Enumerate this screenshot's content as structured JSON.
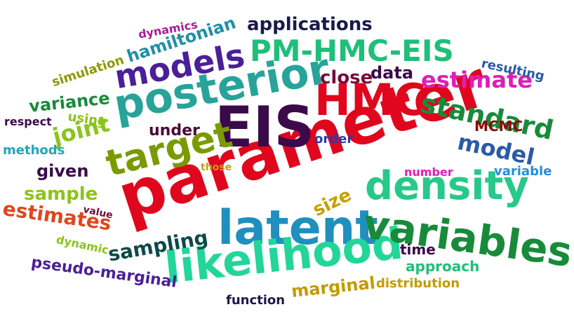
{
  "words": {
    "parameter": {
      "text": "parameter",
      "color": "#e0061d"
    },
    "eis": {
      "text": "EIS",
      "color": "#3a0a4a"
    },
    "hmc": {
      "text": "HMC",
      "color": "#e0061d"
    },
    "posterior": {
      "text": "posterior",
      "color": "#27a39a"
    },
    "latent": {
      "text": "latent",
      "color": "#1f8fbf"
    },
    "density": {
      "text": "density",
      "color": "#27c98a"
    },
    "likelihood": {
      "text": "likelihood",
      "color": "#22d69a"
    },
    "variables": {
      "text": "variables",
      "color": "#178b3a"
    },
    "target": {
      "text": "target",
      "color": "#7a9a00"
    },
    "models": {
      "text": "models",
      "color": "#4b1f9a"
    },
    "pm_hmc_eis": {
      "text": "PM-HMC-EIS",
      "color": "#1fbf7a"
    },
    "standard": {
      "text": "standard",
      "color": "#178b3a"
    },
    "estimate": {
      "text": "estimate",
      "color": "#e01cb9"
    },
    "model": {
      "text": "model",
      "color": "#2a5aa8"
    },
    "sampling": {
      "text": "sampling",
      "color": "#0d4a4a"
    },
    "applications": {
      "text": "applications",
      "color": "#1a1a4a"
    },
    "hamiltonian": {
      "text": "hamiltonian",
      "color": "#1f8fa8"
    },
    "close": {
      "text": "close",
      "color": "#7a0a3a"
    },
    "data": {
      "text": "data",
      "color": "#3a0a4a"
    },
    "resulting": {
      "text": "resulting",
      "color": "#2a5aa8"
    },
    "mcmc": {
      "text": "MCMC",
      "color": "#8a0a0a"
    },
    "order": {
      "text": "order",
      "color": "#2a3aa8"
    },
    "under": {
      "text": "under",
      "color": "#4a0a3a"
    },
    "joint": {
      "text": "joint",
      "color": "#8ac41c"
    },
    "variance": {
      "text": "variance",
      "color": "#178b3a"
    },
    "using": {
      "text": "using",
      "color": "#8ac41c"
    },
    "respect": {
      "text": "respect",
      "color": "#3a0a4a"
    },
    "methods": {
      "text": "methods",
      "color": "#1fa8b8"
    },
    "given": {
      "text": "given",
      "color": "#3a0a4a"
    },
    "sample": {
      "text": "sample",
      "color": "#8ac41c"
    },
    "estimates": {
      "text": "estimates",
      "color": "#e0461d"
    },
    "value": {
      "text": "value",
      "color": "#7a0a3a"
    },
    "dynamic": {
      "text": "dynamic",
      "color": "#8ac41c"
    },
    "pseudo_marginal": {
      "text": "pseudo-marginal",
      "color": "#4b1f9a"
    },
    "function": {
      "text": "function",
      "color": "#1a1a4a"
    },
    "marginal": {
      "text": "marginal",
      "color": "#c49a00"
    },
    "distribution": {
      "text": "distribution",
      "color": "#c49a00"
    },
    "approach": {
      "text": "approach",
      "color": "#1fbf7a"
    },
    "time": {
      "text": "time",
      "color": "#3a0a4a"
    },
    "size": {
      "text": "size",
      "color": "#c4a000"
    },
    "number": {
      "text": "number",
      "color": "#e01cb9"
    },
    "variable": {
      "text": "variable",
      "color": "#1f8fe0"
    },
    "those": {
      "text": "those",
      "color": "#c4a000"
    },
    "dynamics": {
      "text": "dynamics",
      "color": "#a81c9a"
    },
    "simulation": {
      "text": "simulation",
      "color": "#8a9a00"
    }
  }
}
